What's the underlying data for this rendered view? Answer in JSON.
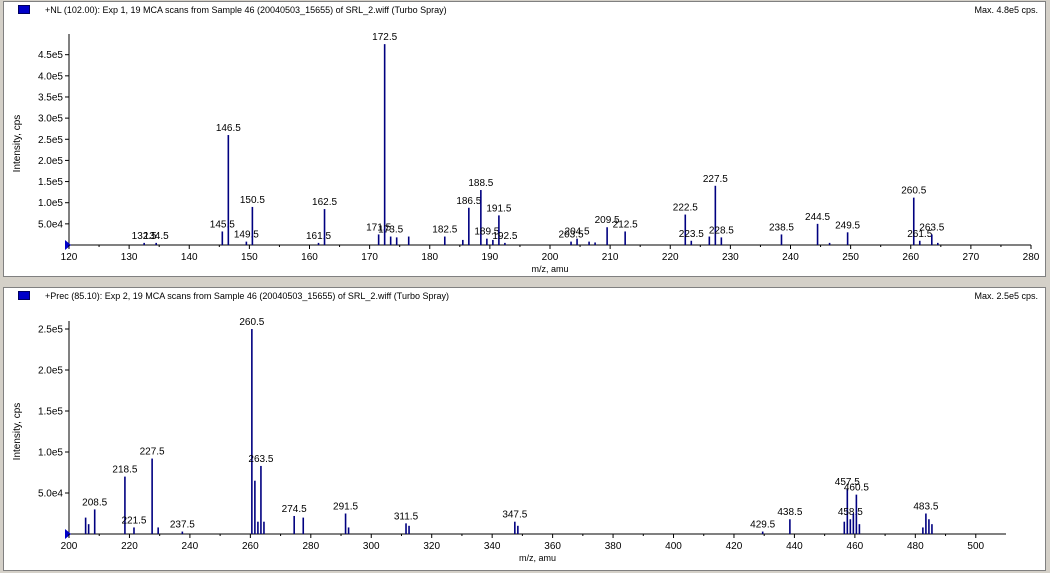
{
  "panels": [
    {
      "title": "+NL (102.00): Exp 1, 19 MCA scans from Sample 46 (20040503_15655) of SRL_2.wiff (Turbo Spray)",
      "max_label": "Max. 4.8e5 cps.",
      "ylabel": "Intensity, cps",
      "xlabel": "m/z, amu"
    },
    {
      "title": "+Prec (85.10): Exp 2, 19 MCA scans from Sample 46 (20040503_15655) of SRL_2.wiff (Turbo Spray)",
      "max_label": "Max. 2.5e5 cps.",
      "ylabel": "Intensity, cps",
      "xlabel": "m/z, amu"
    }
  ],
  "colors": {
    "peak": "#000080",
    "axis": "#000000",
    "background": "#ffffff",
    "marker": "#0000c8"
  },
  "chart_data": [
    {
      "type": "bar",
      "title": "+NL (102.00): Exp 1, 19 MCA scans from Sample 46 (20040503_15655) of SRL_2.wiff (Turbo Spray)",
      "xlabel": "m/z, amu",
      "ylabel": "Intensity, cps",
      "xlim": [
        120,
        280
      ],
      "ylim": [
        0,
        480000
      ],
      "xticks": [
        120,
        130,
        140,
        150,
        160,
        170,
        180,
        190,
        200,
        210,
        220,
        230,
        240,
        250,
        260,
        270,
        280
      ],
      "yticks": [
        50000,
        100000,
        150000,
        200000,
        250000,
        300000,
        350000,
        400000,
        450000
      ],
      "ytick_labels": [
        "5.0e4",
        "1.0e5",
        "1.5e5",
        "2.0e5",
        "2.5e5",
        "3.0e5",
        "3.5e5",
        "4.0e5",
        "4.5e5"
      ],
      "peaks": [
        {
          "mz": 132.5,
          "i": 5000,
          "label": "132.5"
        },
        {
          "mz": 134.5,
          "i": 5000,
          "label": "134.5"
        },
        {
          "mz": 145.5,
          "i": 32000,
          "label": "145.5"
        },
        {
          "mz": 146.5,
          "i": 260000,
          "label": "146.5"
        },
        {
          "mz": 149.5,
          "i": 8000,
          "label": "149.5"
        },
        {
          "mz": 150.5,
          "i": 90000,
          "label": "150.5"
        },
        {
          "mz": 161.5,
          "i": 5000,
          "label": "161.5"
        },
        {
          "mz": 162.5,
          "i": 85000,
          "label": "162.5"
        },
        {
          "mz": 171.5,
          "i": 25000,
          "label": "171.5"
        },
        {
          "mz": 172.5,
          "i": 475000,
          "label": "172.5"
        },
        {
          "mz": 173.5,
          "i": 20000,
          "label": "173.5"
        },
        {
          "mz": 174.5,
          "i": 18000
        },
        {
          "mz": 176.5,
          "i": 20000
        },
        {
          "mz": 182.5,
          "i": 20000,
          "label": "182.5"
        },
        {
          "mz": 185.5,
          "i": 12000
        },
        {
          "mz": 186.5,
          "i": 88000,
          "label": "186.5"
        },
        {
          "mz": 188.5,
          "i": 130000,
          "label": "188.5"
        },
        {
          "mz": 189.5,
          "i": 15000,
          "label": "189.5"
        },
        {
          "mz": 190.5,
          "i": 12000
        },
        {
          "mz": 191.5,
          "i": 70000,
          "label": "191.5"
        },
        {
          "mz": 192.5,
          "i": 5000,
          "label": "192.5"
        },
        {
          "mz": 203.5,
          "i": 8000,
          "label": "203.5"
        },
        {
          "mz": 204.5,
          "i": 15000,
          "label": "204.5"
        },
        {
          "mz": 206.5,
          "i": 8000
        },
        {
          "mz": 207.5,
          "i": 6000
        },
        {
          "mz": 209.5,
          "i": 42000,
          "label": "209.5"
        },
        {
          "mz": 212.5,
          "i": 32000,
          "label": "212.5"
        },
        {
          "mz": 222.5,
          "i": 72000,
          "label": "222.5"
        },
        {
          "mz": 223.5,
          "i": 10000,
          "label": "223.5"
        },
        {
          "mz": 226.5,
          "i": 20000
        },
        {
          "mz": 227.5,
          "i": 140000,
          "label": "227.5"
        },
        {
          "mz": 228.5,
          "i": 18000,
          "label": "228.5"
        },
        {
          "mz": 238.5,
          "i": 25000,
          "label": "238.5"
        },
        {
          "mz": 244.5,
          "i": 50000,
          "label": "244.5"
        },
        {
          "mz": 246.5,
          "i": 5000
        },
        {
          "mz": 249.5,
          "i": 30000,
          "label": "249.5"
        },
        {
          "mz": 260.5,
          "i": 112000,
          "label": "260.5"
        },
        {
          "mz": 261.5,
          "i": 10000,
          "label": "261.5"
        },
        {
          "mz": 263.5,
          "i": 25000,
          "label": "263.5"
        },
        {
          "mz": 264.5,
          "i": 5000
        }
      ]
    },
    {
      "type": "bar",
      "title": "+Prec (85.10): Exp 2, 19 MCA scans from Sample 46 (20040503_15655) of SRL_2.wiff (Turbo Spray)",
      "xlabel": "m/z, amu",
      "ylabel": "Intensity, cps",
      "xlim": [
        200,
        510
      ],
      "ylim": [
        0,
        250000
      ],
      "xticks": [
        200,
        220,
        240,
        260,
        280,
        300,
        320,
        340,
        360,
        380,
        400,
        420,
        440,
        460,
        480,
        500
      ],
      "yticks": [
        50000,
        100000,
        150000,
        200000,
        250000
      ],
      "ytick_labels": [
        "5.0e4",
        "1.0e5",
        "1.5e5",
        "2.0e5",
        "2.5e5"
      ],
      "peaks": [
        {
          "mz": 205.5,
          "i": 20000
        },
        {
          "mz": 206.5,
          "i": 12000
        },
        {
          "mz": 208.5,
          "i": 30000,
          "label": "208.5"
        },
        {
          "mz": 218.5,
          "i": 70000,
          "label": "218.5"
        },
        {
          "mz": 221.5,
          "i": 8000,
          "label": "221.5"
        },
        {
          "mz": 227.5,
          "i": 92000,
          "label": "227.5"
        },
        {
          "mz": 229.5,
          "i": 8000
        },
        {
          "mz": 237.5,
          "i": 3000,
          "label": "237.5"
        },
        {
          "mz": 260.5,
          "i": 250000,
          "label": "260.5"
        },
        {
          "mz": 261.5,
          "i": 65000
        },
        {
          "mz": 262.5,
          "i": 15000
        },
        {
          "mz": 263.5,
          "i": 83000,
          "label": "263.5"
        },
        {
          "mz": 264.5,
          "i": 15000
        },
        {
          "mz": 274.5,
          "i": 22000,
          "label": "274.5"
        },
        {
          "mz": 277.5,
          "i": 20000
        },
        {
          "mz": 291.5,
          "i": 25000,
          "label": "291.5"
        },
        {
          "mz": 292.5,
          "i": 8000
        },
        {
          "mz": 311.5,
          "i": 13000,
          "label": "311.5"
        },
        {
          "mz": 312.5,
          "i": 10000
        },
        {
          "mz": 347.5,
          "i": 15000,
          "label": "347.5"
        },
        {
          "mz": 348.5,
          "i": 10000
        },
        {
          "mz": 429.5,
          "i": 3000,
          "label": "429.5"
        },
        {
          "mz": 438.5,
          "i": 18000,
          "label": "438.5"
        },
        {
          "mz": 456.5,
          "i": 15000
        },
        {
          "mz": 457.5,
          "i": 55000,
          "label": "457.5"
        },
        {
          "mz": 458.5,
          "i": 18000,
          "label": "458.5"
        },
        {
          "mz": 459.5,
          "i": 25000
        },
        {
          "mz": 460.5,
          "i": 48000,
          "label": "460.5"
        },
        {
          "mz": 461.5,
          "i": 12000
        },
        {
          "mz": 482.5,
          "i": 8000
        },
        {
          "mz": 483.5,
          "i": 25000,
          "label": "483.5"
        },
        {
          "mz": 484.5,
          "i": 18000
        },
        {
          "mz": 485.5,
          "i": 12000
        }
      ]
    }
  ]
}
